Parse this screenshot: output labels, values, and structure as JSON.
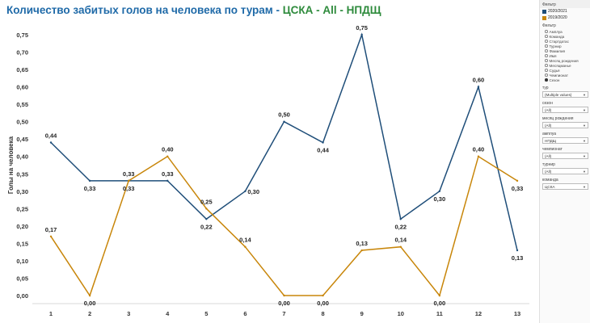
{
  "title": {
    "main": "Количество забитых голов на человека по турам - ",
    "sub": "ЦСКА - All - НПДЩ"
  },
  "panel": {
    "legend_title": "Фильтр",
    "legend": [
      {
        "label": "2020/2021",
        "color": "#1f4e79"
      },
      {
        "label": "2019/2020",
        "color": "#c8860a"
      }
    ],
    "radio_title": "Фильтр",
    "radio_options": [
      "Амплуа",
      "Команда",
      "Стартдатас",
      "Турнир",
      "Фамилия",
      "Имя",
      "Месяц рождения",
      "Месяцманье",
      "Судья",
      "Чемпионат",
      "Сезон"
    ],
    "radio_selected": 10,
    "filters": [
      {
        "label": "тур",
        "value": "(Multiple values)"
      },
      {
        "label": "сезон",
        "value": "(All)"
      },
      {
        "label": "месяц рождения",
        "value": "(All)"
      },
      {
        "label": "амплуа",
        "value": "НПДЩ"
      },
      {
        "label": "чемпионат",
        "value": "(All)"
      },
      {
        "label": "турнир",
        "value": "(All)"
      },
      {
        "label": "команда",
        "value": "ЦСКА"
      }
    ]
  },
  "chart_data": {
    "type": "line",
    "title": "Количество забитых голов на человека по турам - ЦСКА - All - НПДЩ",
    "xlabel": "",
    "ylabel": "Голы на человека",
    "categories": [
      "1",
      "2",
      "3",
      "4",
      "5",
      "6",
      "7",
      "8",
      "9",
      "10",
      "11",
      "12",
      "13"
    ],
    "yticks": [
      "0,00",
      "0,05",
      "0,10",
      "0,15",
      "0,20",
      "0,25",
      "0,30",
      "0,35",
      "0,40",
      "0,45",
      "0,50",
      "0,55",
      "0,60",
      "0,65",
      "0,70",
      "0,75"
    ],
    "ylim": [
      0,
      0.78
    ],
    "grid": false,
    "series": [
      {
        "name": "2020/2021",
        "color": "#1f4e79",
        "values": [
          0.44,
          0.33,
          0.33,
          0.33,
          0.22,
          0.3,
          0.5,
          0.44,
          0.75,
          0.22,
          0.3,
          0.6,
          0.13
        ],
        "labels": [
          "0,44",
          "0,33",
          "0,33",
          "0,33",
          "0,22",
          "0,30",
          "0,50",
          "0,44",
          "0,75",
          "0,22",
          "0,30",
          "0,60",
          "0,13"
        ],
        "label_pos": [
          "above",
          "below",
          "above",
          "above",
          "below",
          "left",
          "above",
          "below",
          "above",
          "below",
          "below",
          "above",
          "below"
        ]
      },
      {
        "name": "2019/2020",
        "color": "#c8860a",
        "values": [
          0.17,
          0.0,
          0.33,
          0.4,
          0.25,
          0.14,
          0.0,
          0.0,
          0.13,
          0.14,
          0.0,
          0.4,
          0.33
        ],
        "labels": [
          "0,17",
          "0,00",
          "0,33",
          "0,40",
          "0,25",
          "0,14",
          "0,00",
          "0,00",
          "0,13",
          "0,14",
          "0,00",
          "0,40",
          "0,33"
        ],
        "label_pos": [
          "above",
          "below",
          "below",
          "above",
          "above",
          "above",
          "below",
          "below",
          "above",
          "above",
          "below",
          "above",
          "below"
        ]
      }
    ]
  }
}
